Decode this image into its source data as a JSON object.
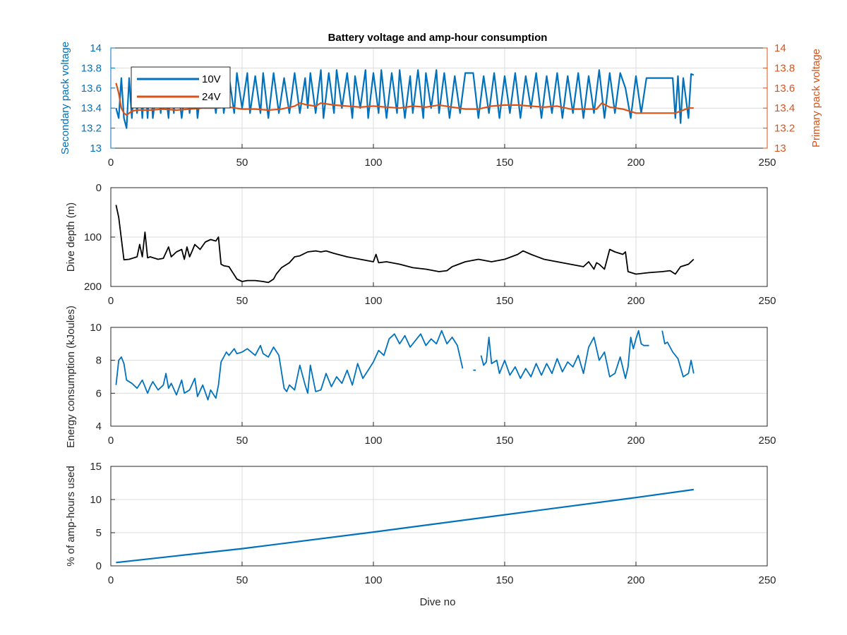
{
  "figure_title": "Battery voltage and amp-hour consumption",
  "colors": {
    "series_10v": "#0072BD",
    "series_24v": "#D95319",
    "depth": "#000000",
    "axis": "#262626",
    "grid": "#dcdcdc"
  },
  "chart_data": [
    {
      "type": "line",
      "title": "Battery voltage and amp-hour consumption",
      "xlabel": "",
      "ylabel_left": "Secondary pack voltage",
      "ylabel_right": "Primary pack voltage",
      "xlim": [
        0,
        250
      ],
      "ylim": [
        13,
        14
      ],
      "ylim_right": [
        13,
        14
      ],
      "xticks": [
        "0",
        "50",
        "100",
        "150",
        "200",
        "250"
      ],
      "yticks": [
        "13",
        "13.2",
        "13.4",
        "13.6",
        "13.8",
        "14"
      ],
      "yticks_right": [
        "13",
        "13.2",
        "13.4",
        "13.6",
        "13.8",
        "14"
      ],
      "grid": true,
      "legend": {
        "placement": "top-left",
        "entries": [
          "10V",
          "24V"
        ]
      },
      "series": [
        {
          "name": "10V",
          "axis": "left",
          "color": "#0072BD",
          "x": [
            2,
            3,
            4,
            5,
            6,
            7,
            8,
            9,
            10,
            11,
            12,
            13,
            14,
            15,
            16,
            18,
            19,
            20,
            22,
            23,
            24,
            25,
            27,
            29,
            30,
            32,
            33,
            35,
            36,
            38,
            40,
            42,
            43,
            45,
            47,
            48,
            50,
            52,
            53,
            55,
            57,
            58,
            60,
            62,
            64,
            66,
            68,
            70,
            72,
            74,
            75,
            76,
            78,
            80,
            81,
            83,
            85,
            86,
            88,
            90,
            92,
            93,
            95,
            97,
            98,
            100,
            102,
            103,
            105,
            107,
            109,
            110,
            112,
            114,
            115,
            117,
            119,
            120,
            122,
            124,
            125,
            127,
            129,
            131,
            133,
            135,
            138,
            140,
            142,
            144,
            146,
            148,
            150,
            152,
            154,
            156,
            158,
            160,
            162,
            164,
            166,
            168,
            170,
            172,
            174,
            176,
            178,
            180,
            182,
            184,
            186,
            188,
            190,
            192,
            194,
            196,
            198,
            200,
            202,
            204,
            206,
            208,
            210,
            212,
            214,
            215,
            216,
            217,
            218,
            220,
            221,
            222
          ],
          "values": [
            13.4,
            13.3,
            13.7,
            13.3,
            13.2,
            13.7,
            13.3,
            13.7,
            13.35,
            13.75,
            13.3,
            13.72,
            13.3,
            13.75,
            13.3,
            13.7,
            13.35,
            13.75,
            13.3,
            13.72,
            13.35,
            13.75,
            13.3,
            13.73,
            13.35,
            13.75,
            13.3,
            13.72,
            13.4,
            13.75,
            13.35,
            13.75,
            13.35,
            13.72,
            13.35,
            13.75,
            13.4,
            13.75,
            13.35,
            13.72,
            13.35,
            13.75,
            13.3,
            13.75,
            13.35,
            13.7,
            13.35,
            13.75,
            13.35,
            13.7,
            13.4,
            13.75,
            13.35,
            13.78,
            13.3,
            13.75,
            13.35,
            13.78,
            13.4,
            13.75,
            13.3,
            13.72,
            13.4,
            13.78,
            13.3,
            13.75,
            13.35,
            13.78,
            13.3,
            13.75,
            13.35,
            13.78,
            13.3,
            13.72,
            13.35,
            13.78,
            13.3,
            13.75,
            13.4,
            13.78,
            13.35,
            13.75,
            13.3,
            13.72,
            13.35,
            13.75,
            13.75,
            13.3,
            13.72,
            13.35,
            13.75,
            13.3,
            13.72,
            13.35,
            13.75,
            13.3,
            13.72,
            13.4,
            13.75,
            13.3,
            13.72,
            13.35,
            13.75,
            13.3,
            13.72,
            13.35,
            13.75,
            13.3,
            13.72,
            13.35,
            13.78,
            13.3,
            13.75,
            13.35,
            13.75,
            13.6,
            13.3,
            13.72,
            13.35,
            13.7,
            13.7,
            13.7,
            13.7,
            13.7,
            13.7,
            13.3,
            13.72,
            13.25,
            13.7,
            13.3,
            13.74,
            13.73
          ]
        },
        {
          "name": "24V",
          "axis": "right",
          "color": "#D95319",
          "x": [
            2,
            3,
            4,
            5,
            6,
            8,
            10,
            15,
            20,
            25,
            30,
            35,
            40,
            45,
            50,
            55,
            60,
            65,
            70,
            72,
            75,
            78,
            80,
            85,
            90,
            95,
            100,
            105,
            110,
            115,
            120,
            125,
            130,
            135,
            140,
            145,
            150,
            155,
            160,
            165,
            170,
            175,
            180,
            185,
            187,
            190,
            195,
            200,
            205,
            210,
            215,
            220,
            222
          ],
          "values": [
            13.65,
            13.55,
            13.4,
            13.35,
            13.33,
            13.37,
            13.38,
            13.38,
            13.39,
            13.38,
            13.39,
            13.4,
            13.4,
            13.41,
            13.39,
            13.39,
            13.38,
            13.39,
            13.42,
            13.45,
            13.43,
            13.42,
            13.45,
            13.43,
            13.42,
            13.41,
            13.42,
            13.41,
            13.4,
            13.42,
            13.41,
            13.43,
            13.41,
            13.39,
            13.39,
            13.42,
            13.43,
            13.43,
            13.42,
            13.41,
            13.42,
            13.39,
            13.39,
            13.39,
            13.45,
            13.41,
            13.39,
            13.35,
            13.35,
            13.35,
            13.35,
            13.4,
            13.4
          ]
        }
      ]
    },
    {
      "type": "line",
      "title": "",
      "xlabel": "",
      "ylabel": "Dive depth (m)",
      "xlim": [
        0,
        250
      ],
      "ylim": [
        0,
        200
      ],
      "y_reversed": true,
      "xticks": [
        "0",
        "50",
        "100",
        "150",
        "200",
        "250"
      ],
      "yticks": [
        "0",
        "100",
        "200"
      ],
      "grid": true,
      "series": [
        {
          "color": "#000000",
          "x": [
            2,
            3,
            5,
            7,
            10,
            11,
            12,
            13,
            14,
            15,
            18,
            20,
            22,
            23,
            25,
            27,
            28,
            29,
            30,
            31,
            32,
            34,
            36,
            38,
            40,
            41,
            42,
            43,
            45,
            48,
            50,
            52,
            55,
            58,
            60,
            62,
            63,
            65,
            68,
            70,
            72,
            75,
            78,
            80,
            82,
            85,
            90,
            95,
            100,
            101,
            102,
            105,
            110,
            115,
            120,
            125,
            128,
            130,
            135,
            140,
            145,
            150,
            155,
            157,
            160,
            165,
            170,
            175,
            180,
            182,
            184,
            185,
            186,
            188,
            190,
            192,
            195,
            196,
            197,
            200,
            205,
            210,
            213,
            215,
            217,
            220,
            222
          ],
          "values": [
            35,
            60,
            146,
            145,
            140,
            115,
            140,
            90,
            142,
            140,
            145,
            143,
            120,
            140,
            130,
            125,
            145,
            120,
            140,
            128,
            115,
            125,
            110,
            105,
            108,
            100,
            155,
            158,
            160,
            185,
            190,
            188,
            188,
            190,
            192,
            185,
            175,
            162,
            152,
            140,
            138,
            130,
            128,
            130,
            128,
            133,
            140,
            145,
            150,
            135,
            152,
            150,
            155,
            162,
            165,
            170,
            168,
            160,
            150,
            145,
            150,
            145,
            135,
            128,
            135,
            145,
            150,
            155,
            160,
            150,
            165,
            152,
            155,
            165,
            125,
            130,
            135,
            130,
            170,
            175,
            172,
            170,
            168,
            175,
            160,
            155,
            145
          ],
          "name": ""
        }
      ]
    },
    {
      "type": "line",
      "title": "",
      "xlabel": "",
      "ylabel": "Energy consumption (kJoules)",
      "xlim": [
        0,
        250
      ],
      "ylim": [
        4,
        10
      ],
      "xticks": [
        "0",
        "50",
        "100",
        "150",
        "200",
        "250"
      ],
      "yticks": [
        "4",
        "6",
        "8",
        "10"
      ],
      "grid": true,
      "series": [
        {
          "color": "#0072BD",
          "segments": [
            {
              "x": [
                2,
                3,
                4,
                5,
                6,
                8,
                10,
                12,
                14,
                15,
                16,
                18,
                20,
                21,
                22,
                23,
                25,
                27,
                28,
                30,
                32,
                33,
                35,
                37,
                38,
                40,
                41,
                42,
                43,
                44,
                45,
                47,
                48,
                50,
                52,
                55,
                57,
                58,
                60,
                62,
                64,
                66,
                67,
                68,
                70,
                72,
                74,
                75,
                76,
                78,
                80,
                82,
                84,
                86,
                88,
                90,
                92,
                94,
                96,
                98,
                100,
                102,
                104,
                106,
                108,
                110,
                112,
                114,
                116,
                118,
                120,
                122,
                124,
                126,
                128,
                130,
                132,
                134
              ],
              "values": [
                6.5,
                8.0,
                8.2,
                7.8,
                6.8,
                6.6,
                6.3,
                6.8,
                6.0,
                6.4,
                6.7,
                6.2,
                6.5,
                7.2,
                6.3,
                6.6,
                5.9,
                6.8,
                6.0,
                6.2,
                6.9,
                5.8,
                6.5,
                5.6,
                6.2,
                5.7,
                6.5,
                7.9,
                8.2,
                8.5,
                8.3,
                8.7,
                8.4,
                8.5,
                8.7,
                8.3,
                8.9,
                8.4,
                8.2,
                8.8,
                8.3,
                6.3,
                6.1,
                6.5,
                6.2,
                7.7,
                6.5,
                6.0,
                7.7,
                6.1,
                6.2,
                7.2,
                6.4,
                7.0,
                6.6,
                7.4,
                6.5,
                7.8,
                6.9,
                7.4,
                7.9,
                8.6,
                8.3,
                9.3,
                9.6,
                9.0,
                9.5,
                8.8,
                9.2,
                9.6,
                8.9,
                9.3,
                9.0,
                9.8,
                9.0,
                9.4,
                8.9,
                7.5
              ]
            },
            {
              "x": [
                138,
                139
              ],
              "values": [
                7.4,
                7.4
              ]
            },
            {
              "x": [
                141,
                142,
                143,
                144,
                145,
                147,
                148,
                150,
                152,
                154,
                156,
                158,
                160,
                162,
                164,
                166,
                168,
                170,
                172,
                174,
                176,
                178,
                180,
                182,
                184,
                186,
                188,
                190,
                192,
                194,
                196,
                197,
                198,
                199,
                200,
                201,
                202,
                203,
                205
              ],
              "values": [
                8.3,
                7.7,
                7.9,
                9.4,
                7.8,
                8.0,
                7.2,
                8.0,
                7.1,
                7.6,
                6.9,
                7.5,
                7.0,
                7.8,
                7.1,
                7.8,
                7.2,
                8.1,
                7.3,
                7.9,
                7.6,
                8.3,
                7.2,
                8.8,
                9.4,
                8.0,
                8.5,
                7.0,
                7.2,
                8.2,
                6.9,
                7.6,
                9.4,
                8.7,
                9.3,
                9.8,
                9.0,
                8.9,
                8.9
              ]
            },
            {
              "x": [
                210,
                211,
                212,
                214,
                216,
                218,
                220,
                221,
                222
              ],
              "values": [
                9.8,
                9.0,
                9.1,
                8.5,
                8.1,
                7.0,
                7.2,
                8.0,
                7.2
              ]
            }
          ],
          "name": ""
        }
      ]
    },
    {
      "type": "line",
      "title": "",
      "xlabel": "Dive no",
      "ylabel": "% of amp-hours used",
      "xlim": [
        0,
        250
      ],
      "ylim": [
        0,
        15
      ],
      "xticks": [
        "0",
        "50",
        "100",
        "150",
        "200",
        "250"
      ],
      "yticks": [
        "0",
        "5",
        "10",
        "15"
      ],
      "grid": true,
      "series": [
        {
          "color": "#0072BD",
          "x": [
            2,
            50,
            100,
            150,
            200,
            222
          ],
          "values": [
            0.5,
            2.6,
            5.1,
            7.7,
            10.3,
            11.5
          ],
          "name": ""
        }
      ]
    }
  ]
}
